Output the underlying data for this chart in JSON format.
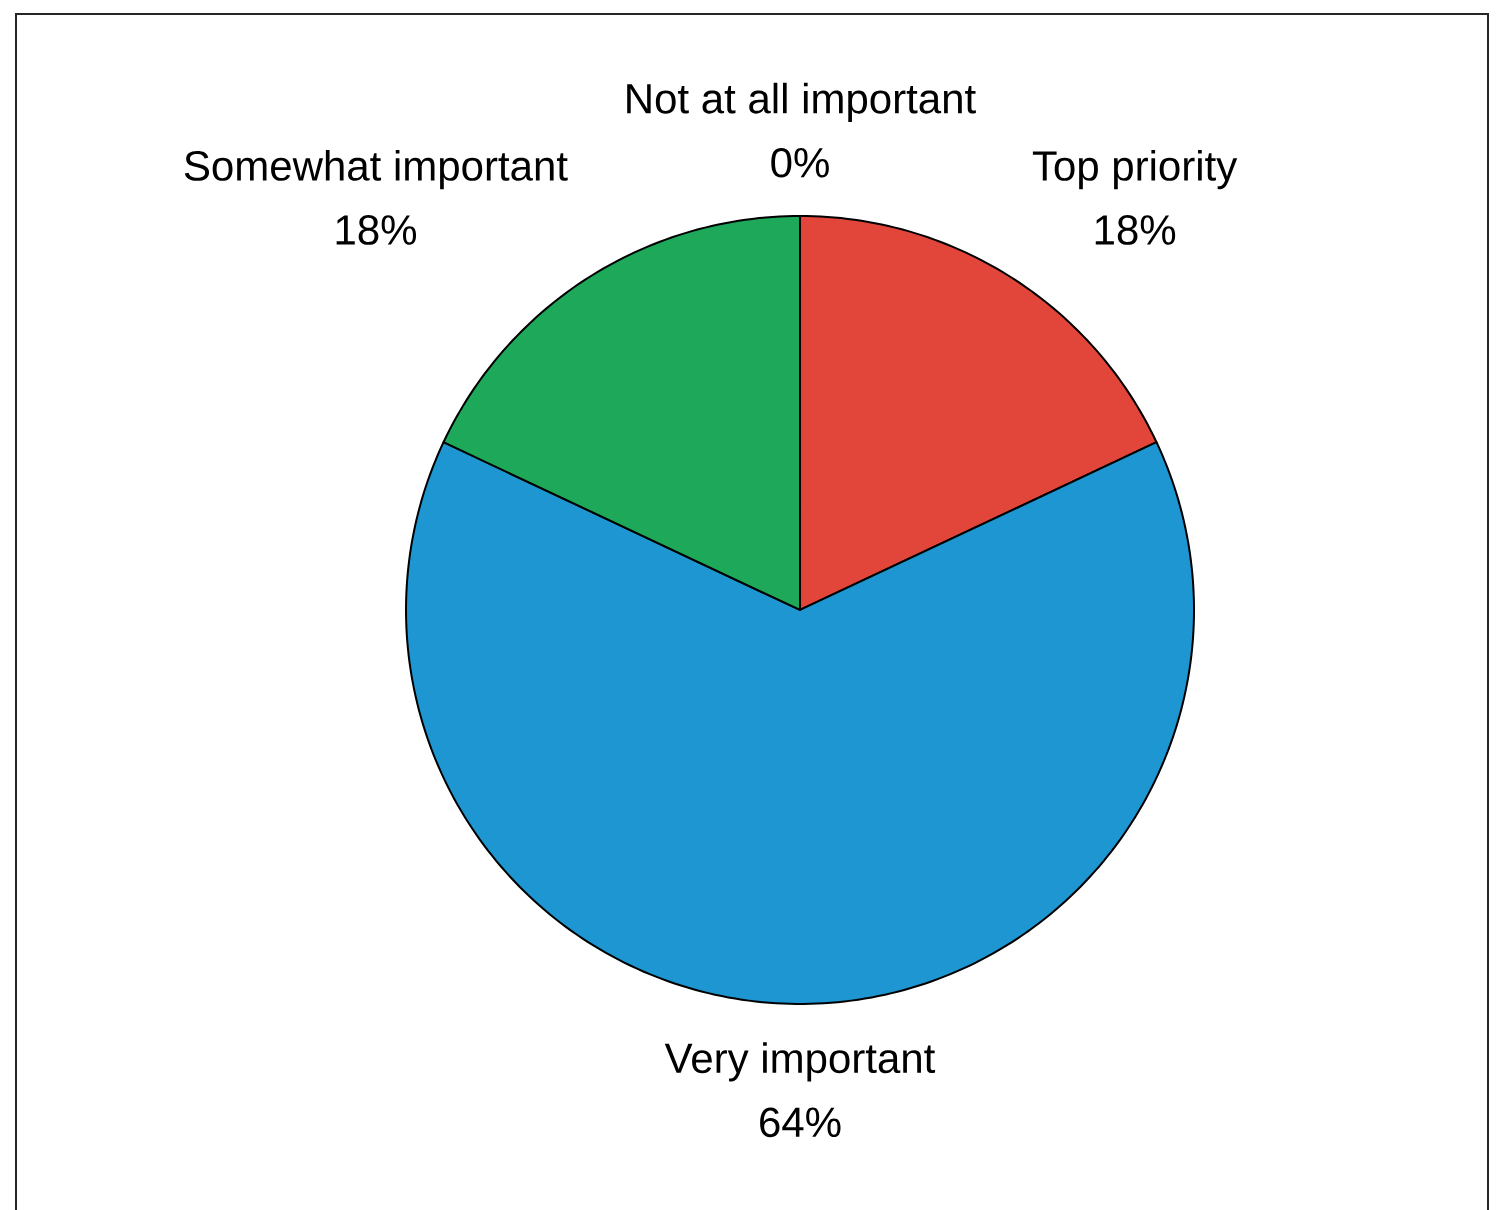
{
  "chart_data": {
    "type": "pie",
    "categories": [
      "Top priority",
      "Very important",
      "Somewhat important",
      "Not at all important"
    ],
    "values": [
      18,
      64,
      18,
      0
    ],
    "value_labels": [
      "18%",
      "64%",
      "18%",
      "0%"
    ],
    "colors": [
      "#e2463a",
      "#1e96d2",
      "#1ea85a",
      null
    ]
  }
}
